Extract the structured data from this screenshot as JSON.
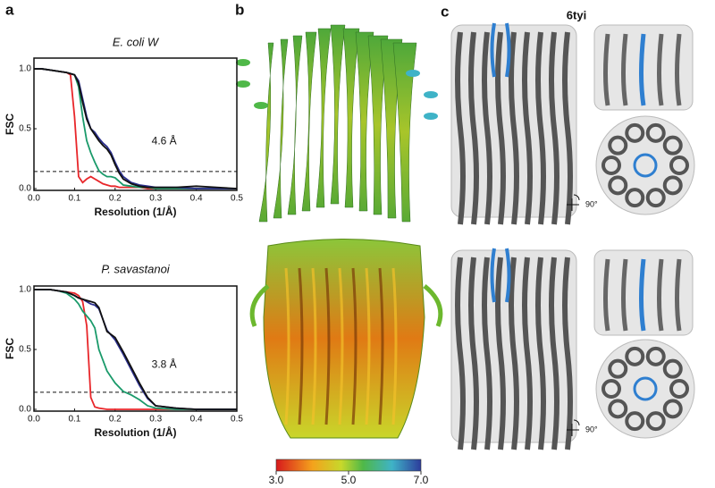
{
  "chart_data": [
    {
      "type": "line",
      "title": "E. coli W",
      "xlabel": "Resolution (1/Å)",
      "ylabel": "FSC",
      "annotation": "4.6 Å",
      "reference_line": 0.143,
      "x": [
        0,
        0.02,
        0.04,
        0.06,
        0.08,
        0.09,
        0.1,
        0.11,
        0.12,
        0.13,
        0.14,
        0.15,
        0.16,
        0.17,
        0.18,
        0.19,
        0.2,
        0.21,
        0.22,
        0.24,
        0.26,
        0.28,
        0.3,
        0.35,
        0.4,
        0.45,
        0.5
      ],
      "series": [
        {
          "color": "#e8262a",
          "values": [
            1,
            1,
            0.99,
            0.98,
            0.97,
            0.95,
            0.6,
            0.1,
            0.05,
            0.08,
            0.1,
            0.08,
            0.06,
            0.04,
            0.03,
            0.02,
            0.02,
            0.01,
            0.01,
            0.01,
            0.01,
            0,
            0,
            0,
            0,
            0,
            0
          ]
        },
        {
          "color": "#1a9a6a",
          "values": [
            1,
            1,
            0.99,
            0.98,
            0.97,
            0.96,
            0.95,
            0.85,
            0.6,
            0.4,
            0.3,
            0.22,
            0.15,
            0.12,
            0.1,
            0.1,
            0.09,
            0.06,
            0.03,
            0.02,
            0.01,
            0.01,
            0,
            0,
            0,
            0,
            0
          ]
        },
        {
          "color": "#2b2f8e",
          "values": [
            1,
            1,
            0.99,
            0.98,
            0.97,
            0.96,
            0.95,
            0.9,
            0.75,
            0.6,
            0.5,
            0.47,
            0.42,
            0.38,
            0.35,
            0.3,
            0.22,
            0.15,
            0.1,
            0.05,
            0.03,
            0.02,
            0.01,
            0.01,
            0,
            0,
            0
          ]
        },
        {
          "color": "#111111",
          "values": [
            1,
            1,
            0.99,
            0.98,
            0.97,
            0.96,
            0.95,
            0.88,
            0.72,
            0.58,
            0.5,
            0.45,
            0.4,
            0.36,
            0.33,
            0.28,
            0.2,
            0.13,
            0.08,
            0.04,
            0.02,
            0.01,
            0.01,
            0.01,
            0.02,
            0.01,
            0
          ]
        }
      ],
      "xlim": [
        0,
        0.5
      ],
      "ylim": [
        -0.015,
        1.09
      ],
      "xticks": [
        {
          "value": 0,
          "label": "0.0"
        },
        0.1,
        0.2,
        0.3,
        0.4,
        0.5
      ],
      "yticks": [
        {
          "value": 0,
          "label": "0.0"
        },
        0.5,
        {
          "value": 1,
          "label": "1.0"
        }
      ]
    },
    {
      "type": "line",
      "title": "P. savastanoi",
      "xlabel": "Resolution (1/Å)",
      "ylabel": "FSC",
      "annotation": "3.8 Å",
      "reference_line": 0.143,
      "x": [
        0,
        0.02,
        0.04,
        0.06,
        0.08,
        0.1,
        0.11,
        0.12,
        0.13,
        0.14,
        0.15,
        0.16,
        0.18,
        0.2,
        0.22,
        0.24,
        0.26,
        0.28,
        0.3,
        0.35,
        0.4,
        0.45,
        0.5
      ],
      "series": [
        {
          "color": "#e8262a",
          "values": [
            1,
            1,
            1,
            0.99,
            0.98,
            0.97,
            0.95,
            0.9,
            0.7,
            0.1,
            0.02,
            0.01,
            0,
            0,
            0,
            0,
            0,
            0,
            0,
            0,
            0,
            0,
            0
          ]
        },
        {
          "color": "#1a9a6a",
          "values": [
            1,
            1,
            1,
            0.99,
            0.97,
            0.92,
            0.88,
            0.82,
            0.78,
            0.74,
            0.68,
            0.5,
            0.32,
            0.22,
            0.15,
            0.12,
            0.08,
            0.03,
            0.01,
            0,
            0,
            0,
            0
          ]
        },
        {
          "color": "#2b2f8e",
          "values": [
            1,
            1,
            1,
            0.99,
            0.98,
            0.95,
            0.93,
            0.92,
            0.9,
            0.88,
            0.87,
            0.84,
            0.66,
            0.58,
            0.46,
            0.33,
            0.2,
            0.09,
            0.03,
            0.01,
            0,
            0,
            0
          ]
        },
        {
          "color": "#111111",
          "values": [
            1,
            1,
            1,
            0.99,
            0.98,
            0.95,
            0.93,
            0.92,
            0.91,
            0.9,
            0.89,
            0.85,
            0.65,
            0.6,
            0.48,
            0.35,
            0.22,
            0.1,
            0.03,
            0.01,
            0,
            0,
            0
          ]
        }
      ],
      "xlim": [
        0,
        0.5
      ],
      "ylim": [
        -0.015,
        1.03
      ],
      "xticks": [
        {
          "value": 0,
          "label": "0.0"
        },
        0.1,
        0.2,
        0.3,
        0.4,
        0.5
      ],
      "yticks": [
        {
          "value": 0,
          "label": "0.0"
        },
        0.5,
        {
          "value": 1,
          "label": "1.0"
        }
      ]
    }
  ],
  "panels": {
    "a": "a",
    "b": "b",
    "c": "c"
  },
  "pdb_id": "6tyi",
  "rotation": [
    "90°",
    "90°"
  ],
  "colorbar": {
    "lim": [
      3,
      7
    ],
    "ticks": [
      {
        "value": 3,
        "label": "3.0"
      },
      {
        "value": 5,
        "label": "5.0"
      },
      {
        "value": 7,
        "label": "7.0"
      }
    ]
  }
}
